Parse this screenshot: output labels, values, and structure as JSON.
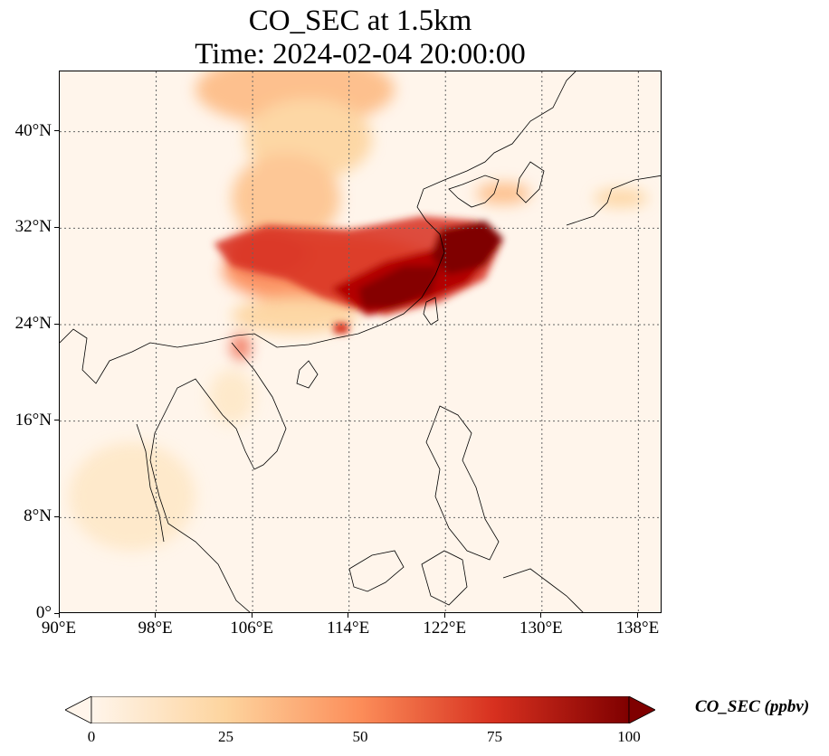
{
  "title": {
    "line1": "CO_SEC at 1.5km",
    "line2": "Time: 2024-02-04 20:00:00"
  },
  "map": {
    "extent_lon": [
      90,
      140
    ],
    "extent_lat": [
      0,
      45
    ],
    "lon_ticks": [
      {
        "value": 90,
        "label": "90°E"
      },
      {
        "value": 98,
        "label": "98°E"
      },
      {
        "value": 106,
        "label": "106°E"
      },
      {
        "value": 114,
        "label": "114°E"
      },
      {
        "value": 122,
        "label": "122°E"
      },
      {
        "value": 130,
        "label": "130°E"
      },
      {
        "value": 138,
        "label": "138°E"
      }
    ],
    "lat_ticks": [
      {
        "value": 0,
        "label": "0°"
      },
      {
        "value": 8,
        "label": "8°N"
      },
      {
        "value": 16,
        "label": "16°N"
      },
      {
        "value": 24,
        "label": "24°N"
      },
      {
        "value": 32,
        "label": "32°N"
      },
      {
        "value": 40,
        "label": "40°N"
      }
    ],
    "gridlines": true,
    "colormap": "OrRd",
    "colors": [
      "#fff5eb",
      "#fdd49e",
      "#fc8d59",
      "#d7301f",
      "#7f0000"
    ]
  },
  "colorbar": {
    "label": "CO_SEC (ppbv)",
    "min": 0,
    "max": 100,
    "extend": "both",
    "ticks": [
      {
        "value": 0,
        "label": "0"
      },
      {
        "value": 25,
        "label": "25"
      },
      {
        "value": 50,
        "label": "50"
      },
      {
        "value": 75,
        "label": "75"
      },
      {
        "value": 100,
        "label": "100"
      }
    ]
  }
}
